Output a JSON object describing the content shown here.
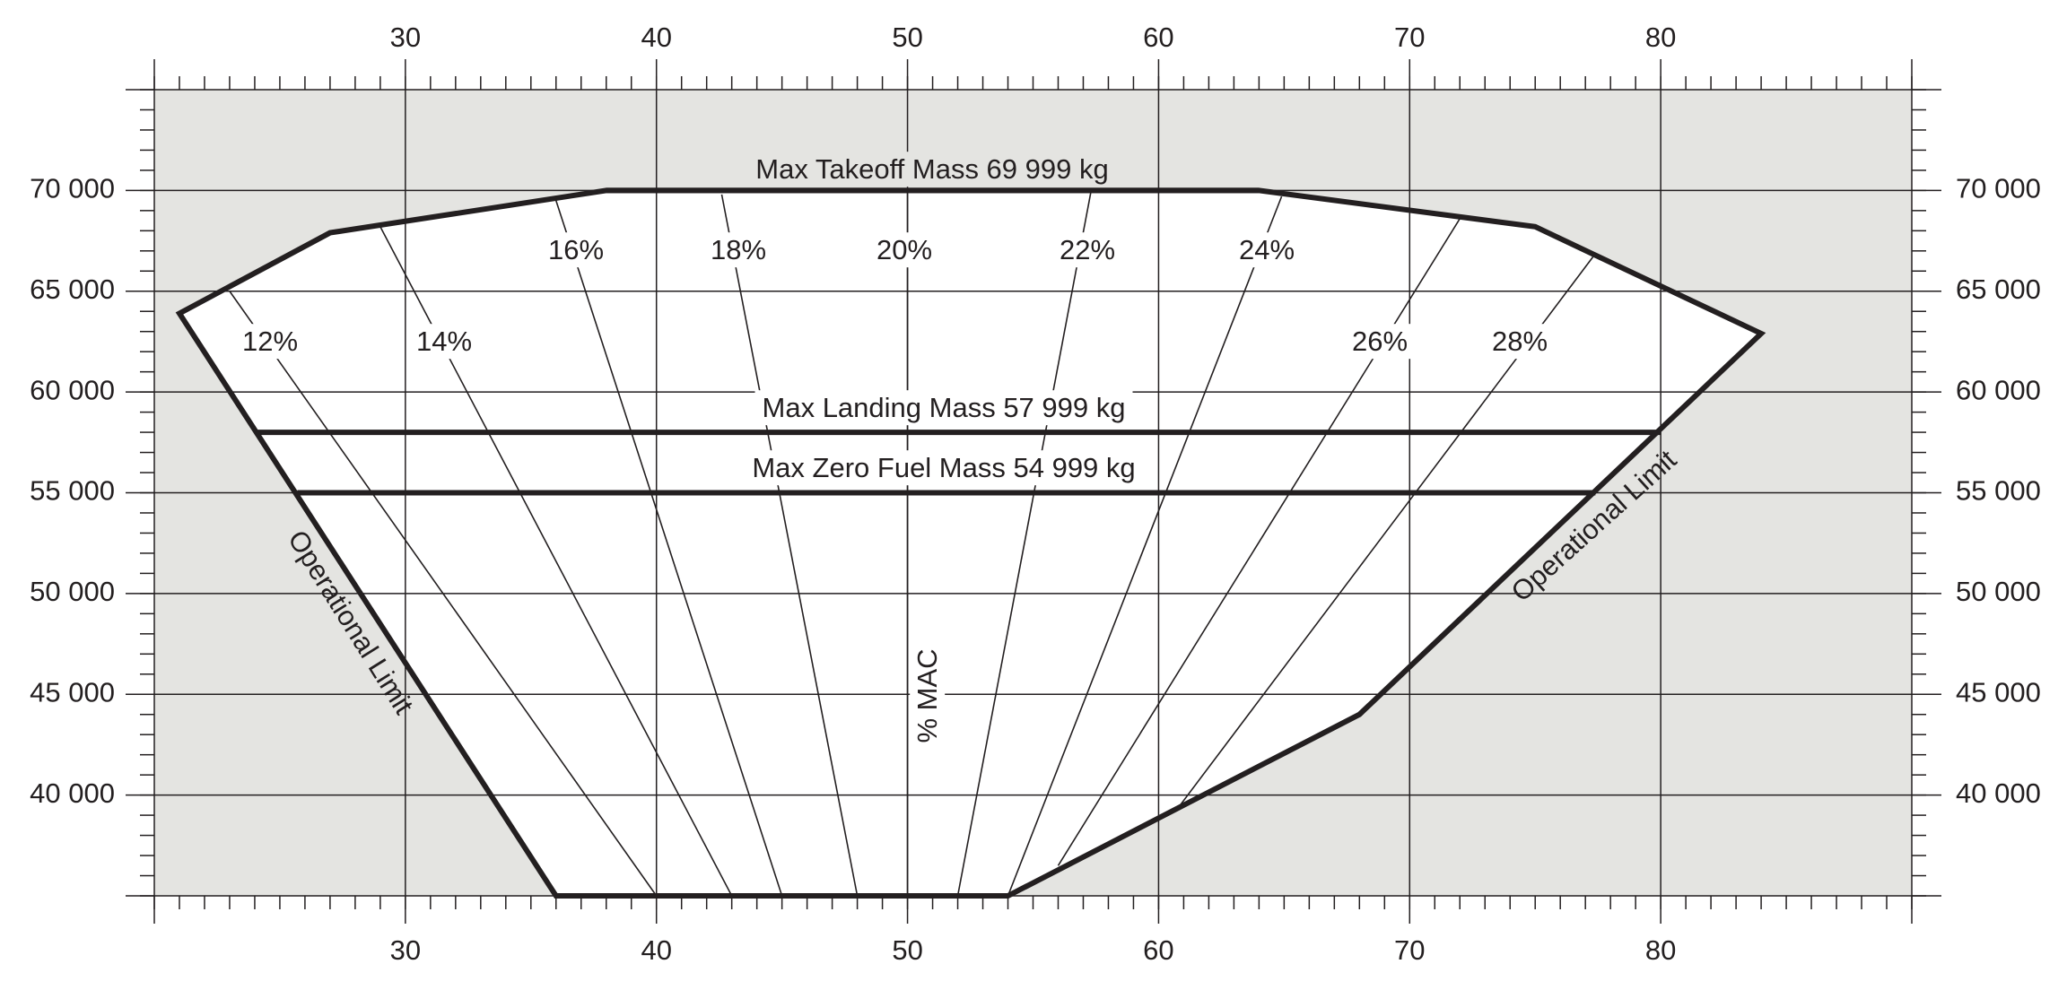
{
  "chart_data": {
    "type": "envelope",
    "xlim": [
      20,
      90
    ],
    "xticks": [
      30,
      40,
      50,
      60,
      70,
      80
    ],
    "x_minor_step": 1,
    "ylim": [
      35000,
      75000
    ],
    "yticks": [
      {
        "value": 40000,
        "label": "40 000"
      },
      {
        "value": 45000,
        "label": "45 000"
      },
      {
        "value": 50000,
        "label": "50 000"
      },
      {
        "value": 55000,
        "label": "55 000"
      },
      {
        "value": 60000,
        "label": "60 000"
      },
      {
        "value": 65000,
        "label": "65 000"
      },
      {
        "value": 70000,
        "label": "70 000"
      }
    ],
    "y_minor_step": 1000,
    "x_axis_label": "% MAC",
    "color": "#231f20",
    "background": "#e4e4e1",
    "grid": true,
    "envelope": {
      "x": [
        21,
        27,
        38,
        64,
        75,
        84,
        68,
        54,
        36
      ],
      "y": [
        63900,
        67900,
        69999,
        69999,
        68200,
        62900,
        44000,
        35000,
        35000
      ]
    },
    "mass_limits": [
      {
        "label": "Max Takeoff Mass 69 999 kg",
        "mass": 69999,
        "x": [
          38,
          64
        ]
      },
      {
        "label": "Max Landing Mass 57 999 kg",
        "mass": 57999,
        "x": [
          24,
          80
        ]
      },
      {
        "label": "Max Zero Fuel Mass 54 999 kg",
        "mass": 54999,
        "x": [
          25.7,
          77.4
        ]
      }
    ],
    "mac_lines": [
      {
        "label": "12%",
        "x": [
          40,
          23
        ],
        "y": [
          35000,
          65000
        ]
      },
      {
        "label": "14%",
        "x": [
          43,
          29
        ],
        "y": [
          35000,
          68200
        ]
      },
      {
        "label": "16%",
        "x": [
          45,
          36
        ],
        "y": [
          35000,
          69500
        ]
      },
      {
        "label": "18%",
        "x": [
          48,
          42.6
        ],
        "y": [
          35000,
          69800
        ]
      },
      {
        "label": "20%",
        "x": [
          50,
          50
        ],
        "y": [
          35000,
          69999
        ]
      },
      {
        "label": "22%",
        "x": [
          52,
          57.3
        ],
        "y": [
          35000,
          69900
        ]
      },
      {
        "label": "24%",
        "x": [
          54,
          64.9
        ],
        "y": [
          35000,
          69700
        ]
      },
      {
        "label": "26%",
        "x": [
          56,
          72
        ],
        "y": [
          36500,
          68600
        ]
      },
      {
        "label": "28%",
        "x": [
          60.8,
          77.3
        ],
        "y": [
          39400,
          66700
        ]
      }
    ],
    "edge_labels": [
      "Operational Limit",
      "Operational Limit"
    ]
  }
}
